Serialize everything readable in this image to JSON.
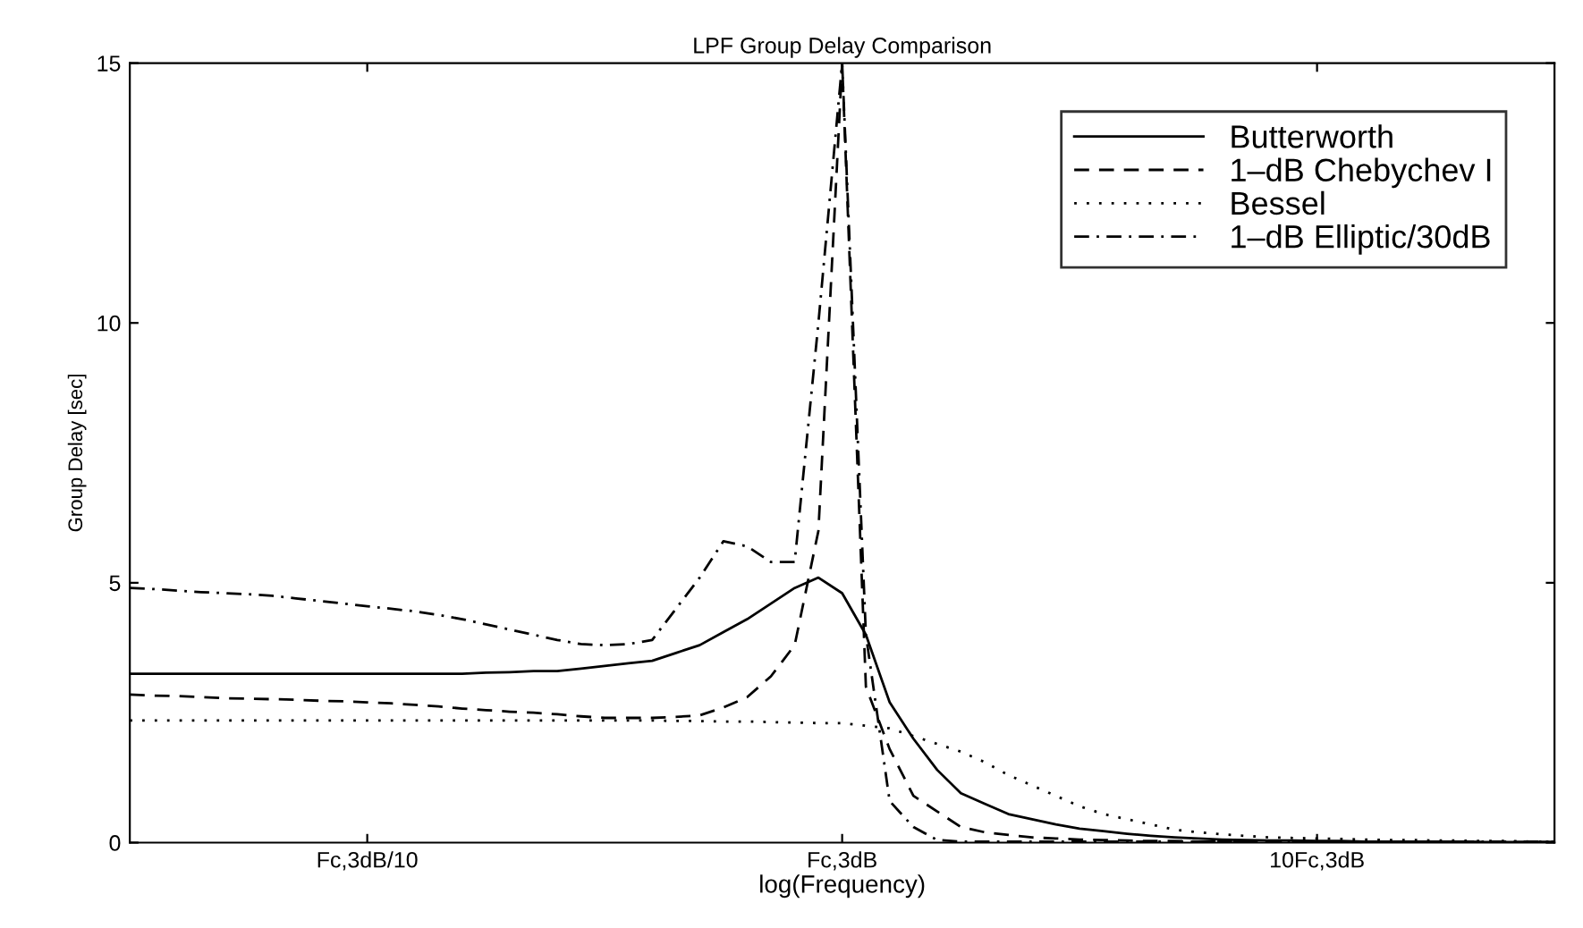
{
  "chart_data": {
    "type": "line",
    "title": "LPF Group Delay Comparison",
    "xlabel": "log(Frequency)",
    "ylabel": "Group Delay [sec]",
    "categories": [
      null,
      null,
      null,
      null,
      null,
      null,
      null,
      null,
      null,
      null,
      "Fc,3dB/10",
      null,
      null,
      null,
      null,
      null,
      null,
      null,
      null,
      null,
      null,
      null,
      null,
      null,
      null,
      null,
      null,
      null,
      null,
      null,
      "Fc,3dB",
      null,
      null,
      null,
      null,
      null,
      null,
      null,
      null,
      null,
      null,
      null,
      null,
      null,
      null,
      null,
      null,
      null,
      null,
      null,
      "10Fc,3dB",
      null,
      null,
      null,
      null,
      null,
      null,
      null,
      null,
      null,
      null
    ],
    "ylim": [
      0,
      15
    ],
    "yticks": [
      0,
      5,
      10,
      15
    ],
    "grid": false,
    "legend": "top right",
    "series": [
      {
        "name": "Butterworth",
        "color": "#000000",
        "line_style": "solid",
        "values": [
          3.25,
          3.25,
          3.25,
          3.25,
          3.25,
          3.25,
          3.25,
          3.25,
          3.25,
          3.25,
          3.25,
          3.25,
          3.25,
          3.25,
          3.25,
          3.27,
          3.28,
          3.3,
          3.3,
          3.35,
          3.4,
          3.45,
          3.5,
          3.65,
          3.8,
          4.05,
          4.3,
          4.6,
          4.9,
          5.1,
          4.8,
          4.0,
          2.7,
          2.0,
          1.4,
          0.95,
          0.75,
          0.55,
          0.45,
          0.35,
          0.27,
          0.22,
          0.17,
          0.13,
          0.1,
          0.08,
          0.06,
          0.05,
          0.04,
          0.04,
          0.03,
          0.03,
          0.02,
          0.02,
          0.02,
          0.02,
          0.02,
          0.01,
          0.01,
          0.01,
          0.01
        ]
      },
      {
        "name": "1–dB Chebychev I",
        "color": "#000000",
        "line_style": "dashed",
        "values": [
          2.85,
          2.83,
          2.82,
          2.8,
          2.78,
          2.77,
          2.76,
          2.75,
          2.73,
          2.72,
          2.7,
          2.68,
          2.65,
          2.62,
          2.58,
          2.55,
          2.52,
          2.5,
          2.47,
          2.43,
          2.4,
          2.4,
          2.4,
          2.42,
          2.45,
          2.6,
          2.8,
          3.2,
          3.8,
          6,
          15,
          3.0,
          1.8,
          0.9,
          0.6,
          0.3,
          0.2,
          0.15,
          0.1,
          0.08,
          0.06,
          0.05,
          0.04,
          0.03,
          0.03,
          0.02,
          0.02,
          0.02,
          0.02,
          0.01,
          0.01,
          0.01,
          0.01,
          0.01,
          0.01,
          0.01,
          0.01,
          0.01,
          0.01,
          0.01,
          0.01
        ]
      },
      {
        "name": "Bessel",
        "color": "#000000",
        "line_style": "dotted",
        "values": [
          2.35,
          2.35,
          2.35,
          2.35,
          2.35,
          2.35,
          2.35,
          2.35,
          2.35,
          2.35,
          2.35,
          2.35,
          2.35,
          2.35,
          2.35,
          2.35,
          2.35,
          2.35,
          2.35,
          2.35,
          2.35,
          2.35,
          2.35,
          2.34,
          2.34,
          2.33,
          2.33,
          2.32,
          2.31,
          2.3,
          2.3,
          2.25,
          2.2,
          2.05,
          1.9,
          1.75,
          1.55,
          1.3,
          1.1,
          0.9,
          0.7,
          0.55,
          0.45,
          0.35,
          0.25,
          0.2,
          0.16,
          0.13,
          0.1,
          0.09,
          0.08,
          0.07,
          0.06,
          0.05,
          0.05,
          0.04,
          0.04,
          0.03,
          0.03,
          0.02,
          0.02
        ]
      },
      {
        "name": "1–dB Elliptic/30dB",
        "color": "#000000",
        "line_style": "dashdot",
        "values": [
          4.9,
          4.88,
          4.85,
          4.82,
          4.8,
          4.78,
          4.75,
          4.7,
          4.65,
          4.6,
          4.55,
          4.5,
          4.45,
          4.38,
          4.3,
          4.2,
          4.1,
          4.0,
          3.9,
          3.82,
          3.8,
          3.82,
          3.9,
          4.5,
          5.1,
          5.8,
          5.7,
          5.4,
          5.4,
          10,
          15,
          4,
          0.8,
          0.3,
          0.05,
          0.02,
          0.02,
          0.02,
          0.02,
          0.02,
          0.02,
          0.02,
          0.02,
          0.02,
          0.02,
          0.02,
          0.02,
          0.02,
          0.02,
          0.02,
          0.02,
          0.02,
          0.02,
          0.02,
          0.02,
          0.02,
          0.02,
          0.02,
          0.02,
          0.02,
          0.02
        ]
      }
    ]
  }
}
